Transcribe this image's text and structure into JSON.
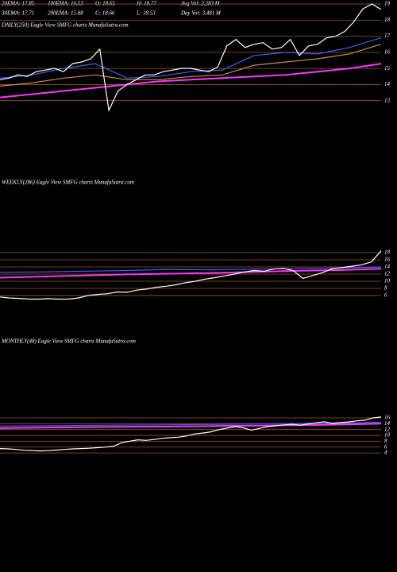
{
  "header": {
    "rows": [
      [
        "20EMA: 17.85",
        "100EMA: 16.53",
        "O: 18.65",
        "H: 18.77",
        "Avg Vol: 2.283 M"
      ],
      [
        "30EMA: 17.71",
        "200EMA: 15.88",
        "C: 18.66",
        "L: 18.53",
        "Day Vol: 3.481 M"
      ]
    ]
  },
  "chart_data": [
    {
      "type": "line",
      "title": "DAILY(250) Eagle View SMFG charts MunafaSutra.com",
      "ylim": [
        11.85,
        19.25
      ],
      "yticks": [
        13,
        14,
        15,
        16,
        17,
        18,
        19
      ],
      "grid": true,
      "series": [
        {
          "color": "#ff33ff",
          "values": [
            13.2,
            13.4,
            13.6,
            13.8,
            14.0,
            14.2,
            14.3,
            14.4,
            14.5,
            14.6,
            14.8,
            15.0,
            15.3
          ]
        },
        {
          "color": "#c89040",
          "values": [
            13.9,
            14.1,
            14.4,
            14.6,
            14.3,
            14.3,
            14.5,
            14.6,
            15.2,
            15.4,
            15.6,
            15.9,
            16.5
          ]
        },
        {
          "color": "#3366ff",
          "values": [
            14.4,
            14.6,
            15.0,
            15.3,
            14.4,
            14.5,
            14.8,
            14.9,
            15.8,
            16.0,
            15.9,
            16.3,
            16.9
          ]
        },
        {
          "color": "#ffffff",
          "values": [
            14.3,
            14.4,
            14.6,
            14.5,
            14.8,
            14.9,
            15.0,
            14.8,
            15.3,
            15.4,
            15.6,
            16.2,
            12.4,
            13.6,
            14.0,
            14.3,
            14.6,
            14.6,
            14.8,
            14.9,
            15.0,
            15.0,
            14.9,
            14.8,
            15.1,
            16.4,
            16.8,
            16.3,
            16.5,
            16.6,
            16.2,
            16.3,
            16.8,
            15.8,
            16.4,
            16.5,
            16.9,
            17.0,
            17.3,
            17.9,
            18.7,
            19.0,
            18.66
          ]
        }
      ]
    },
    {
      "type": "line",
      "title": "WEEKLY(286) Eagle View SMFG charts MunafaSutra.com",
      "ylim": [
        3.1,
        22
      ],
      "yticks": [
        6,
        8,
        10,
        12,
        14,
        16,
        18
      ],
      "grid": true,
      "series": [
        {
          "color": "#ff33ff",
          "values": [
            11.0,
            11.3,
            11.6,
            11.9,
            12.1,
            12.3,
            12.6,
            12.9,
            13.1,
            13.5
          ]
        },
        {
          "color": "#3366ff",
          "values": [
            12.5,
            12.6,
            12.8,
            13.0,
            13.3,
            13.2,
            13.4,
            13.5,
            13.7,
            14.0
          ]
        },
        {
          "color": "#ffffff",
          "values": [
            5.6,
            5.3,
            5.2,
            5.0,
            5.0,
            5.1,
            5.0,
            5.0,
            5.3,
            6.0,
            6.3,
            6.5,
            7.0,
            6.9,
            7.5,
            7.8,
            8.3,
            8.6,
            9.0,
            9.6,
            10.0,
            10.6,
            11.0,
            11.5,
            12.0,
            12.6,
            13.0,
            12.8,
            13.4,
            13.6,
            13.0,
            10.8,
            11.6,
            12.4,
            13.5,
            13.8,
            14.2,
            14.6,
            15.4,
            18.5
          ]
        }
      ]
    },
    {
      "type": "line",
      "title": "MONTHLY(48) Eagle View SMFG charts MunafaSutra.com",
      "ylim": [
        -1.4,
        21.7
      ],
      "yticks": [
        4,
        6,
        8,
        10,
        12,
        14,
        16
      ],
      "grid": true,
      "series": [
        {
          "color": "#ff33ff",
          "values": [
            12.5,
            12.7,
            12.9,
            13.0,
            13.2,
            13.4,
            13.6,
            14.0
          ]
        },
        {
          "color": "#3366ff",
          "values": [
            13.2,
            13.3,
            13.5,
            13.6,
            13.8,
            14.0,
            14.2,
            14.5
          ]
        },
        {
          "color": "#ffffff",
          "values": [
            5.5,
            5.4,
            5.2,
            4.9,
            4.8,
            4.7,
            4.8,
            5.0,
            5.2,
            5.4,
            5.5,
            5.6,
            5.8,
            6.0,
            6.3,
            7.5,
            8.0,
            8.5,
            8.3,
            8.6,
            9.0,
            9.2,
            9.4,
            9.8,
            10.5,
            10.8,
            11.2,
            12.0,
            12.5,
            13.0,
            12.6,
            11.8,
            12.4,
            13.0,
            13.3,
            13.6,
            13.8,
            13.5,
            13.9,
            14.3,
            14.7,
            14.1,
            14.4,
            14.6,
            15.0,
            15.2,
            16.0,
            16.3
          ]
        }
      ]
    }
  ]
}
